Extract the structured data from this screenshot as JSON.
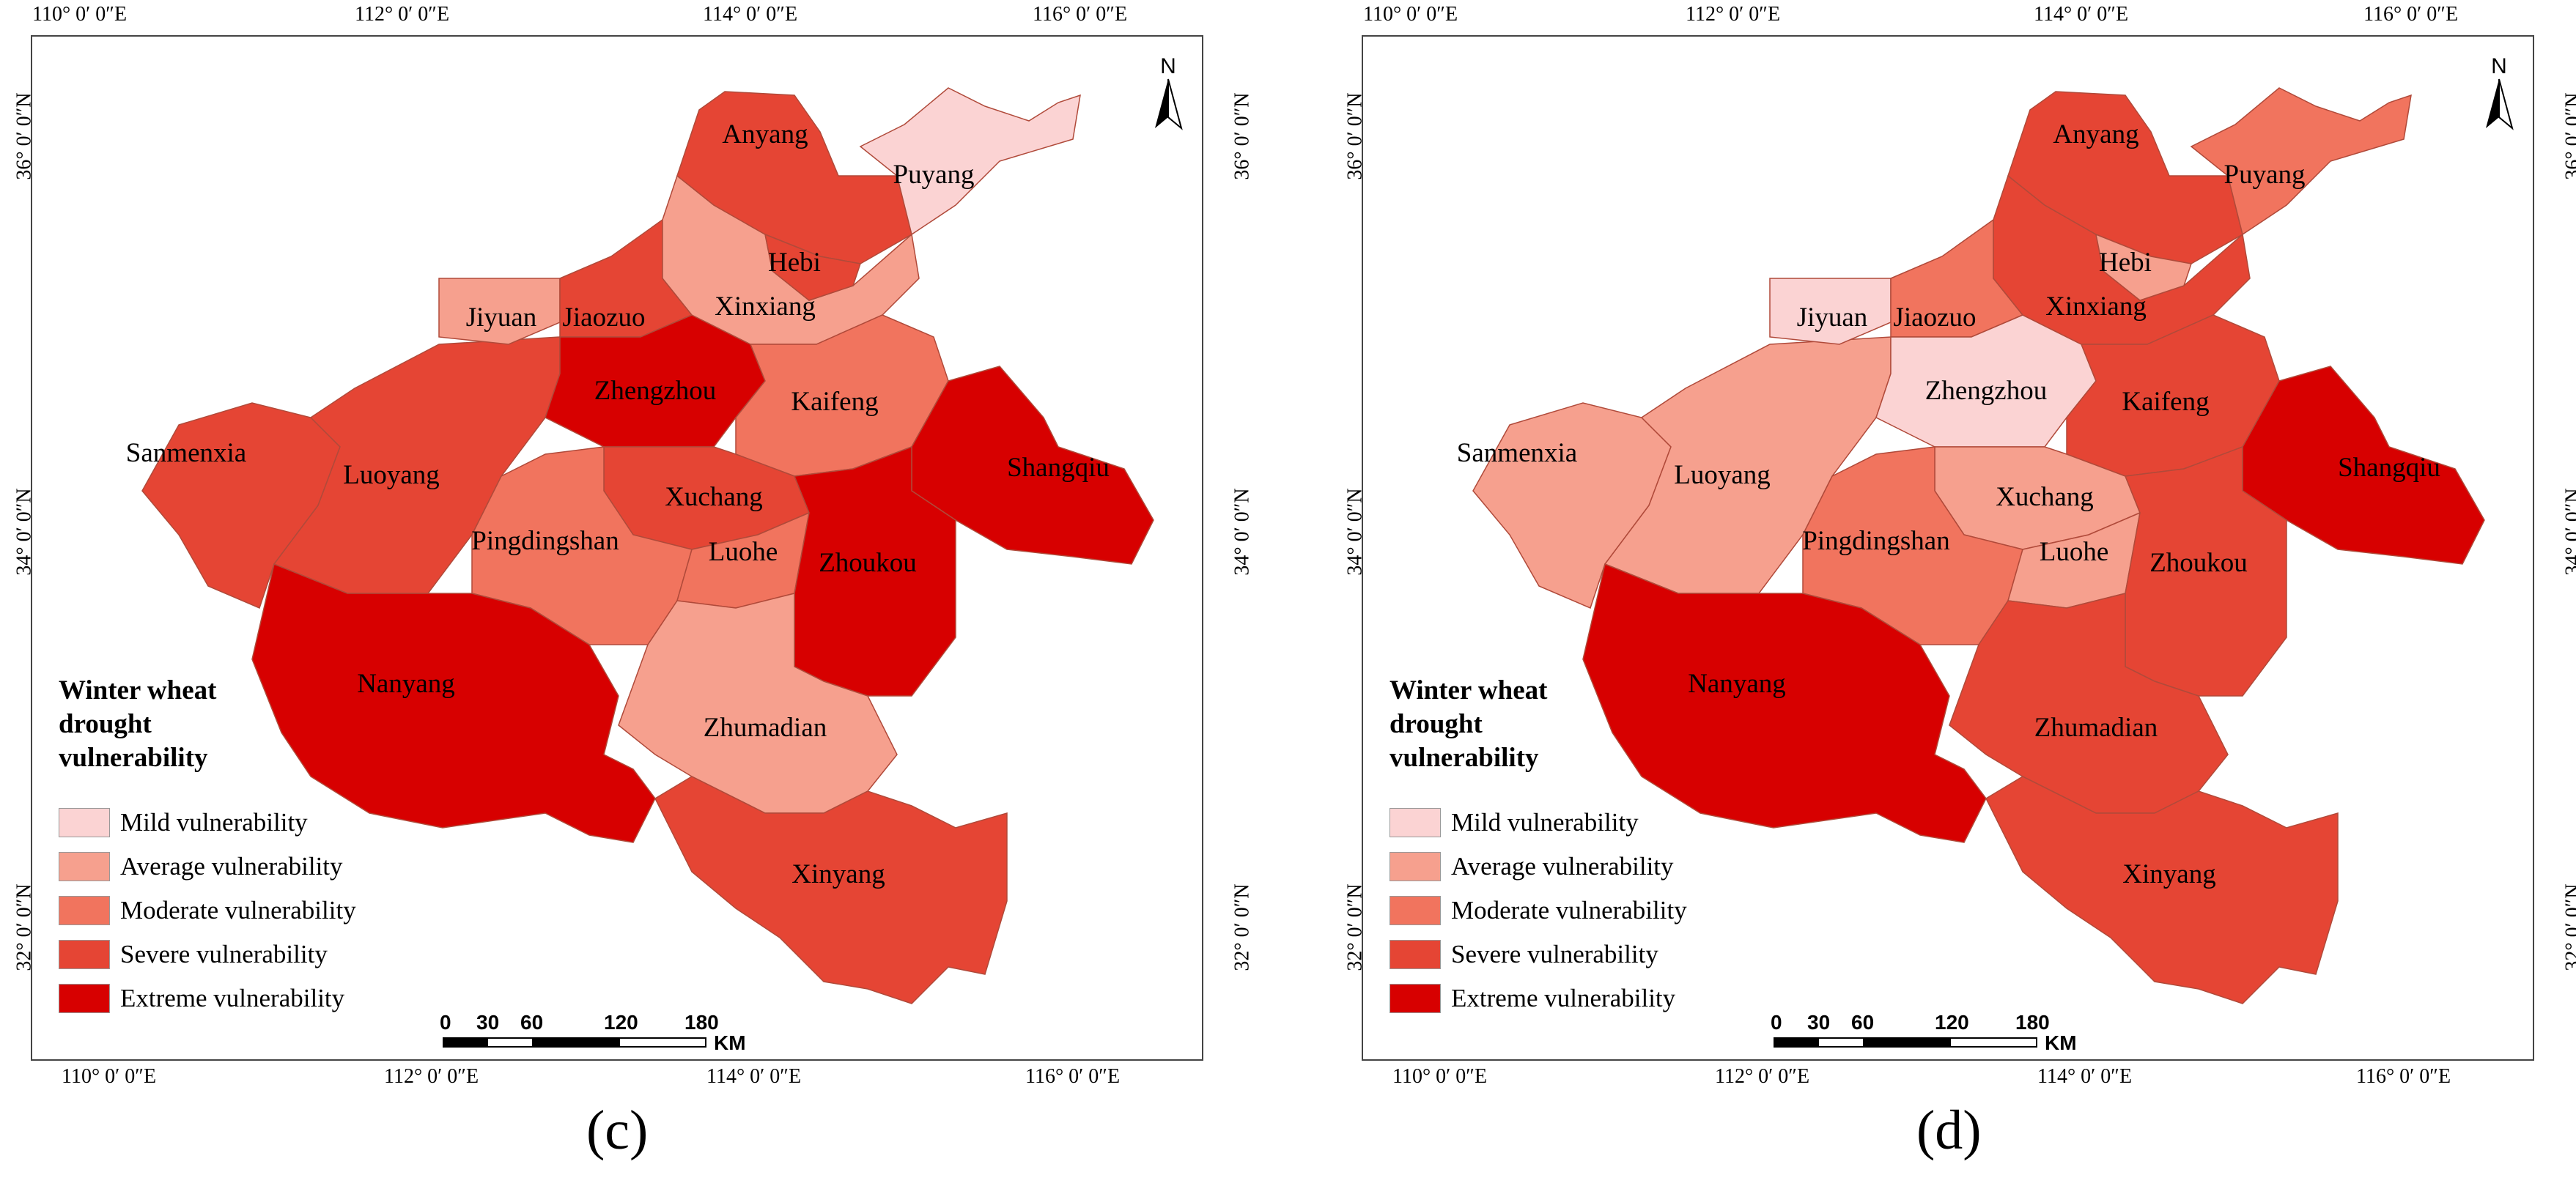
{
  "legend": {
    "title_lines": [
      "Winter wheat",
      "drought",
      "vulnerability"
    ],
    "items": [
      {
        "key": "mild",
        "label": "Mild vulnerability",
        "color": "#fbd3d3"
      },
      {
        "key": "average",
        "label": "Average vulnerability",
        "color": "#f6a08e"
      },
      {
        "key": "moderate",
        "label": "Moderate vulnerability",
        "color": "#f1745e"
      },
      {
        "key": "severe",
        "label": "Severe vulnerability",
        "color": "#e54534"
      },
      {
        "key": "extreme",
        "label": "Extreme vulnerability",
        "color": "#d70000"
      }
    ]
  },
  "axes": {
    "top_labels": [
      "110° 0′ 0″E",
      "112° 0′ 0″E",
      "114° 0′ 0″E",
      "116° 0′ 0″E"
    ],
    "bottom_labels": [
      "110° 0′ 0″E",
      "112° 0′ 0″E",
      "114° 0′ 0″E",
      "116° 0′ 0″E"
    ],
    "left_labels": [
      "36° 0′ 0″N",
      "34° 0′ 0″N",
      "32° 0′ 0″N"
    ],
    "right_labels": [
      "36° 0′ 0″N",
      "34° 0′ 0″N",
      "32° 0′ 0″N"
    ]
  },
  "north_arrow": {
    "label": "N"
  },
  "scale_bar": {
    "ticks": [
      "0",
      "30",
      "60",
      "120",
      "180"
    ],
    "unit": "KM"
  },
  "panels": [
    {
      "letter": "(c)",
      "regions": {
        "anyang": "severe",
        "puyang": "mild",
        "hebi": "severe",
        "xinxiang": "average",
        "jiyuan": "average",
        "jiaozuo": "severe",
        "zhengzhou": "extreme",
        "kaifeng": "moderate",
        "shangqiu": "extreme",
        "sanmenxia": "severe",
        "luoyang": "severe",
        "xuchang": "severe",
        "pingdingshan": "moderate",
        "luohe": "moderate",
        "zhoukou": "extreme",
        "nanyang": "extreme",
        "zhumadian": "average",
        "xinyang": "severe"
      }
    },
    {
      "letter": "(d)",
      "regions": {
        "anyang": "severe",
        "puyang": "moderate",
        "hebi": "average",
        "xinxiang": "severe",
        "jiyuan": "mild",
        "jiaozuo": "moderate",
        "zhengzhou": "mild",
        "kaifeng": "severe",
        "shangqiu": "extreme",
        "sanmenxia": "average",
        "luoyang": "average",
        "xuchang": "average",
        "pingdingshan": "moderate",
        "luohe": "average",
        "zhoukou": "severe",
        "nanyang": "extreme",
        "zhumadian": "severe",
        "xinyang": "severe"
      }
    }
  ],
  "region_names": {
    "anyang": "Anyang",
    "puyang": "Puyang",
    "hebi": "Hebi",
    "xinxiang": "Xinxiang",
    "jiyuan": "Jiyuan",
    "jiaozuo": "Jiaozuo",
    "zhengzhou": "Zhengzhou",
    "kaifeng": "Kaifeng",
    "shangqiu": "Shangqiu",
    "sanmenxia": "Sanmenxia",
    "luoyang": "Luoyang",
    "xuchang": "Xuchang",
    "pingdingshan": "Pingdingshan",
    "luohe": "Luohe",
    "zhoukou": "Zhoukou",
    "nanyang": "Nanyang",
    "zhumadian": "Zhumadian",
    "xinyang": "Xinyang"
  }
}
